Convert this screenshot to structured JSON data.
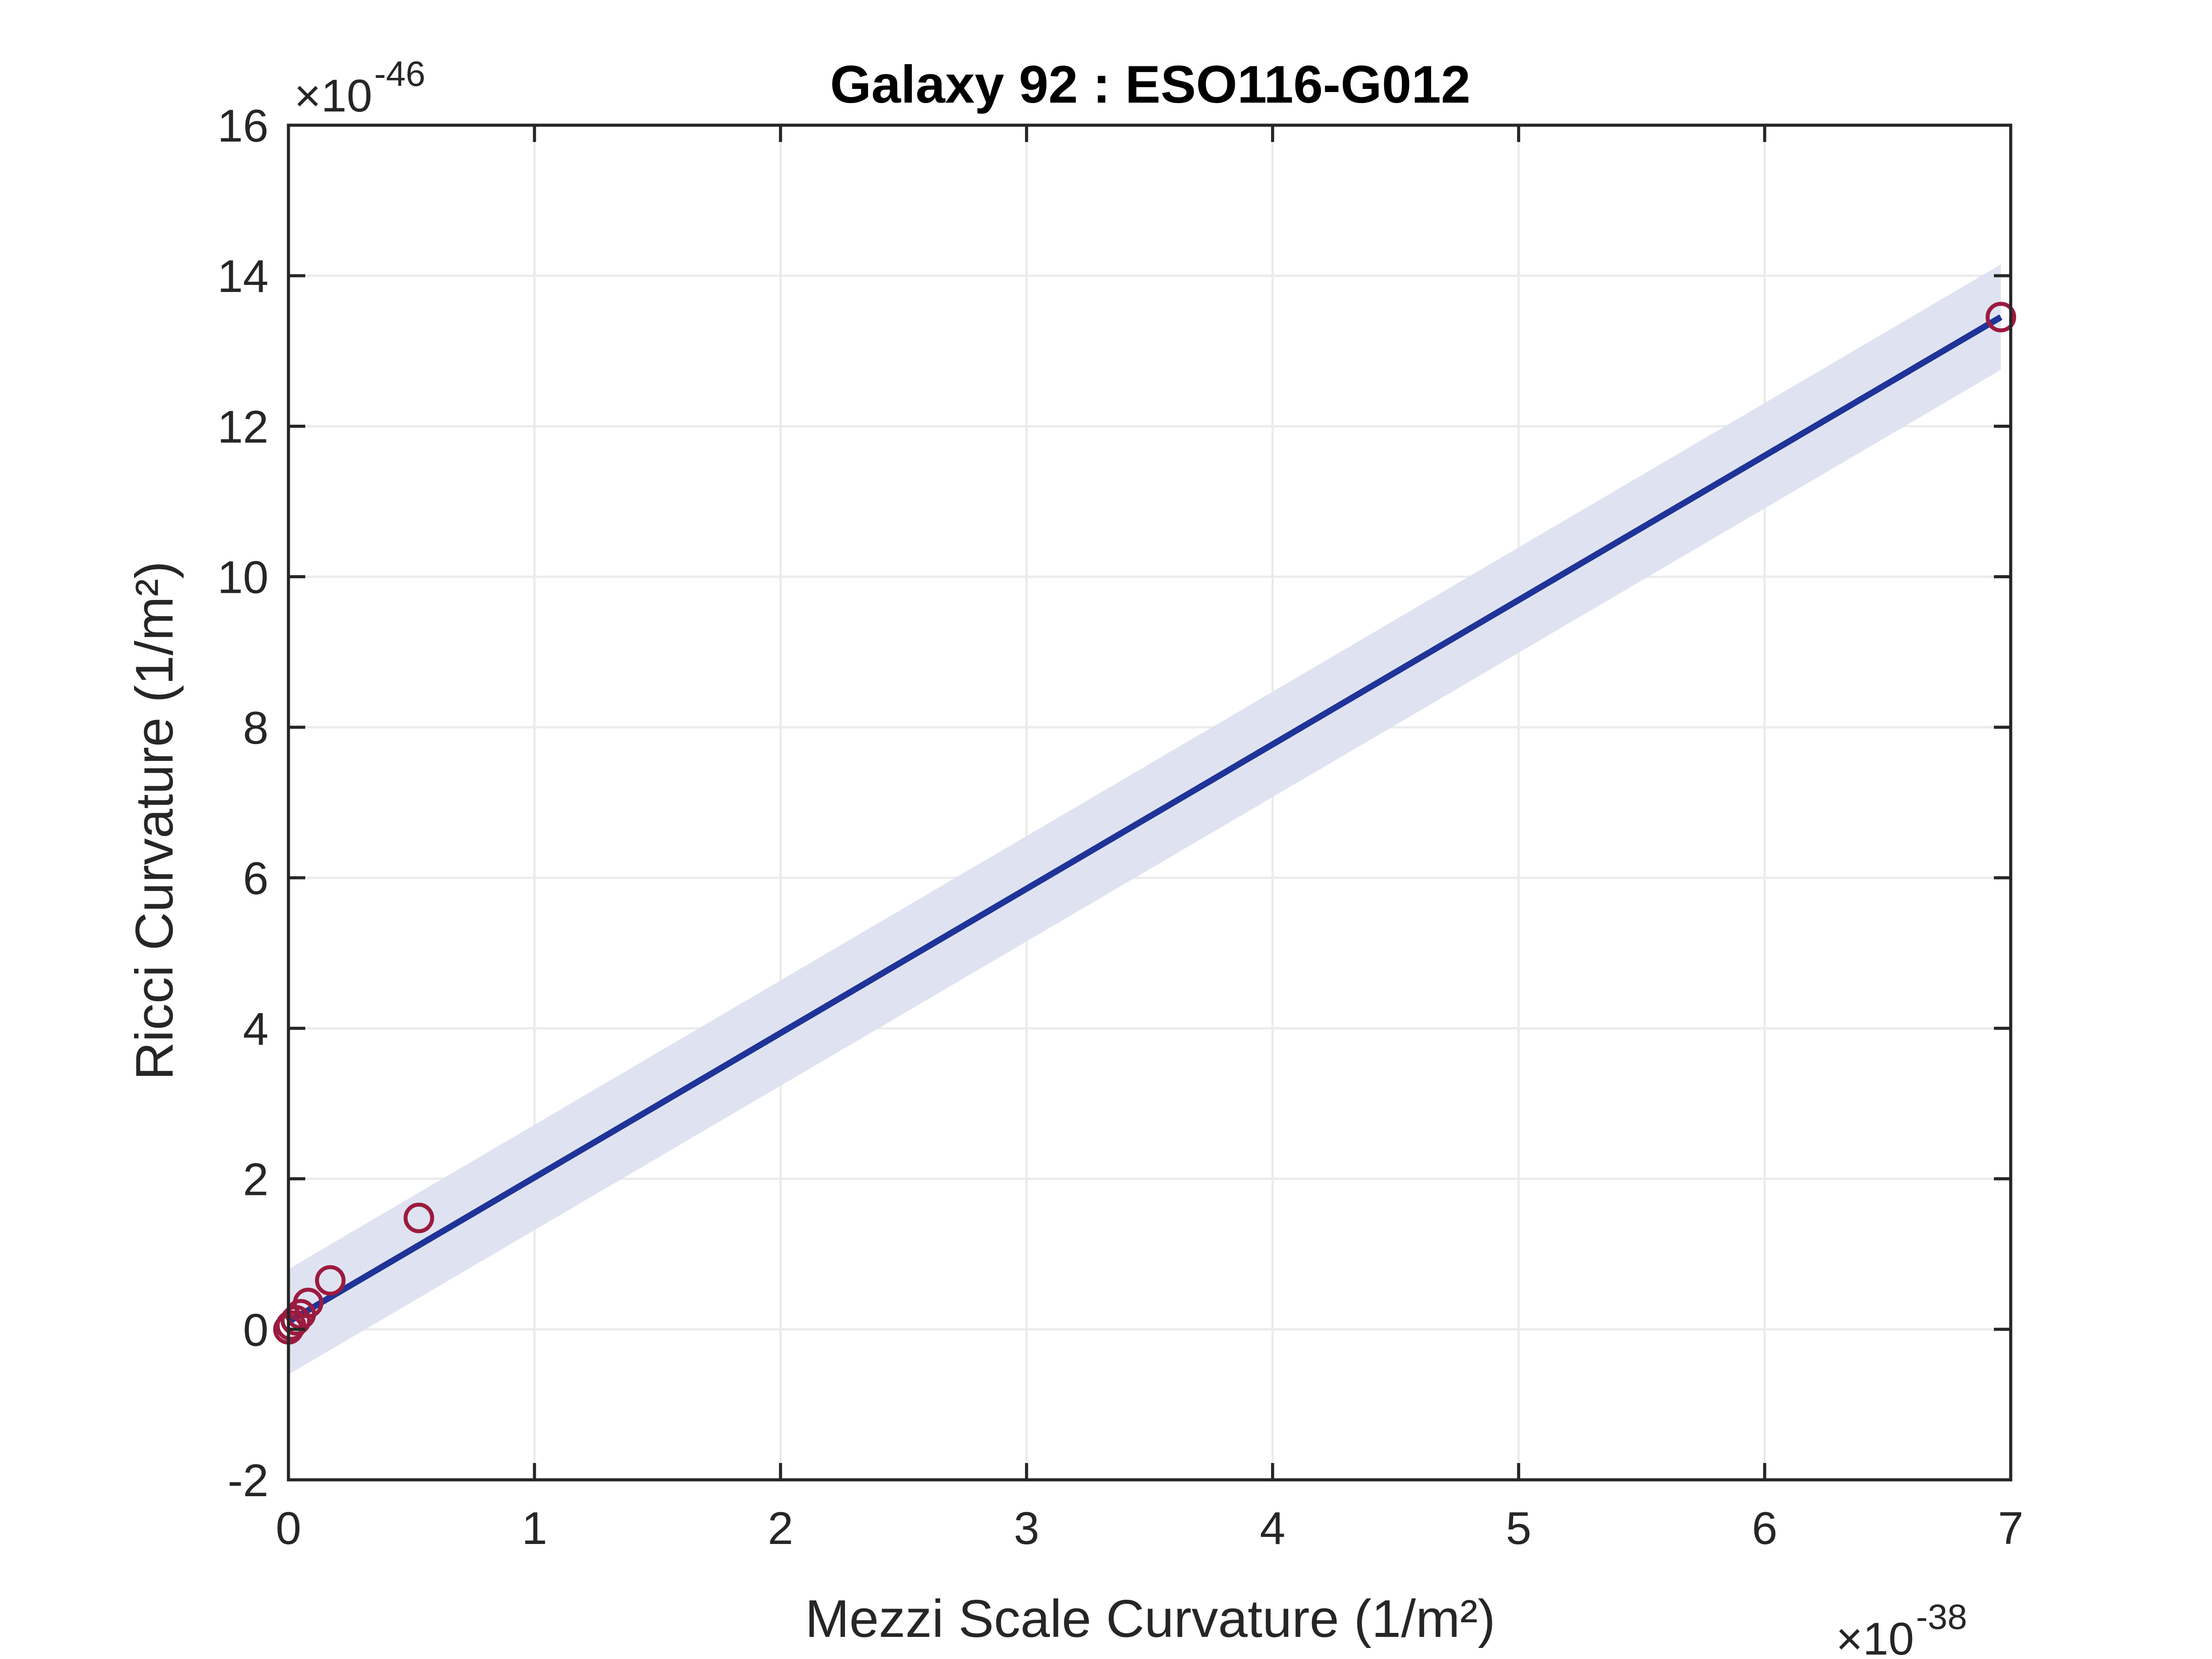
{
  "chart_data": {
    "type": "scatter",
    "title": "Galaxy 92 : ESO116-G012",
    "xlabel": "Mezzi Scale Curvature (1/m²)",
    "ylabel": "Ricci Curvature (1/m²)",
    "x_exponent_label": "×10",
    "x_exponent": "-38",
    "y_exponent_label": "×10",
    "y_exponent": "-46",
    "xlim": [
      0,
      7
    ],
    "ylim": [
      -2,
      16
    ],
    "x_ticks": [
      0,
      1,
      2,
      3,
      4,
      5,
      6,
      7
    ],
    "x_tick_labels": [
      "0",
      "1",
      "2",
      "3",
      "4",
      "5",
      "6",
      "7"
    ],
    "y_ticks": [
      -2,
      0,
      2,
      4,
      6,
      8,
      10,
      12,
      14,
      16
    ],
    "y_tick_labels": [
      "-2",
      "0",
      "2",
      "4",
      "6",
      "8",
      "10",
      "12",
      "14",
      "16"
    ],
    "grid": true,
    "series": [
      {
        "type": "scatter",
        "marker": "open-circle",
        "color": "#9b1b3f",
        "points": [
          {
            "x": 0.0,
            "y": 0.0
          },
          {
            "x": 0.01,
            "y": 0.05
          },
          {
            "x": 0.03,
            "y": 0.12
          },
          {
            "x": 0.05,
            "y": 0.2
          },
          {
            "x": 0.08,
            "y": 0.35
          },
          {
            "x": 0.17,
            "y": 0.65
          },
          {
            "x": 0.53,
            "y": 1.48
          },
          {
            "x": 6.96,
            "y": 13.45
          }
        ]
      },
      {
        "type": "line",
        "color": "#1f3399",
        "x": [
          0.0,
          6.96
        ],
        "y": [
          0.1,
          13.45
        ]
      },
      {
        "type": "band",
        "color": "#dde1f0",
        "x": [
          0.0,
          6.96
        ],
        "lower": [
          -0.6,
          12.75
        ],
        "upper": [
          0.8,
          14.15
        ]
      }
    ]
  }
}
